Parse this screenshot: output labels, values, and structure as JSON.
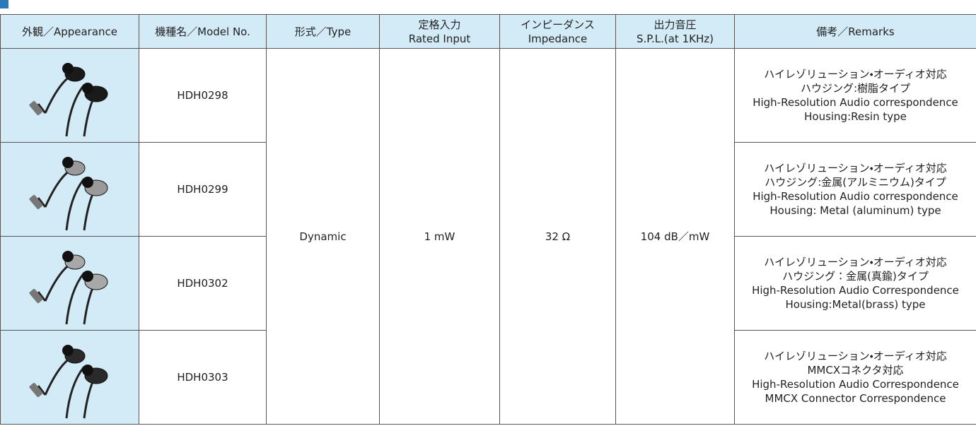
{
  "table": {
    "headers": [
      [
        "外観／Appearance"
      ],
      [
        "機種名／Model No."
      ],
      [
        "形式／Type"
      ],
      [
        "定格入力",
        "Rated Input"
      ],
      [
        "インピーダンス",
        "Impedance"
      ],
      [
        "出力音圧",
        "S.P.L.(at 1KHz)"
      ],
      [
        "備考／Remarks"
      ]
    ],
    "type": "Dynamic",
    "rated_input": "1 mW",
    "impedance": "32 Ω",
    "spl": "104 dB／mW",
    "rows": [
      {
        "model": "HDH0298",
        "remarks": [
          "ハイレゾリューション・オーディオ対応",
          "ハウジング:樹脂タイプ",
          "High-Resolution Audio correspondence",
          "Housing:Resin type"
        ]
      },
      {
        "model": "HDH0299",
        "remarks": [
          "ハイレゾリューション・オーディオ対応",
          "ハウジング:金属(アルミニウム)タイプ",
          "High-Resolution Audio correspondence",
          "Housing: Metal (aluminum) type"
        ]
      },
      {
        "model": "HDH0302",
        "remarks": [
          "ハイレゾリューション・オーディオ対応",
          "ハウジング：金属(真鍮)タイプ",
          "High-Resolution Audio Correspondence",
          "Housing:Metal(brass) type"
        ]
      },
      {
        "model": "HDH0303",
        "remarks": [
          "ハイレゾリューション・オーディオ対応",
          "MMCXコネクタ対応",
          "High-Resolution Audio Correspondence",
          "MMCX Connector Correspondence"
        ]
      }
    ]
  }
}
